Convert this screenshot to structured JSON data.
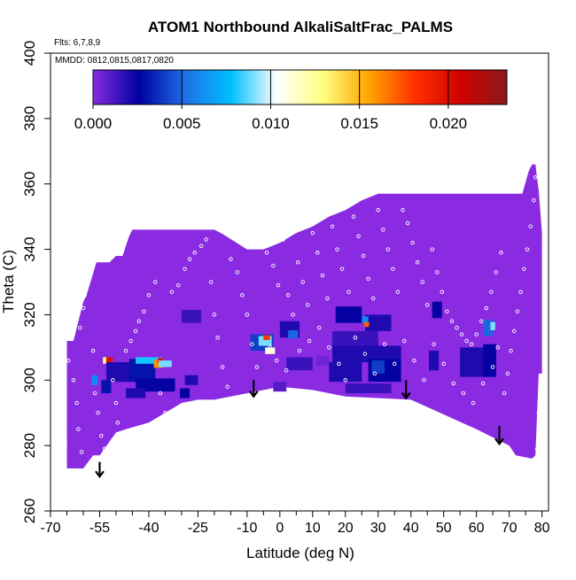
{
  "chart_data": {
    "type": "heatmap",
    "title": "ATOM1 Northbound AlkaliSaltFrac_PALMS",
    "flights_note": "Flts: 6,7,8,9",
    "dates_note": "MMDD: 0812,0815,0817,0820",
    "xlabel": "Latitude (deg N)",
    "ylabel": "Theta (C)",
    "xlim": [
      -70,
      82
    ],
    "ylim": [
      260,
      400
    ],
    "xticks_major": [
      -70,
      -55,
      -40,
      -25,
      -10,
      0,
      10,
      20,
      30,
      40,
      50,
      60,
      70,
      80
    ],
    "xticks_minor": [
      -65,
      -60,
      -50,
      -45,
      -35,
      -30,
      -20,
      -15,
      -5,
      5,
      15,
      25,
      35,
      45,
      55,
      65,
      75
    ],
    "yticks": [
      260,
      280,
      300,
      320,
      340,
      360,
      380,
      400
    ],
    "colorbar": {
      "min": 0.0,
      "max": 0.0233,
      "tick_values": [
        0.0,
        0.005,
        0.01,
        0.015,
        0.02
      ],
      "tick_labels": [
        "0.000",
        "0.005",
        "0.010",
        "0.015",
        "0.020"
      ],
      "colors": [
        "#8a2be2",
        "#0000a0",
        "#1e6fe6",
        "#00bfff",
        "#ffffff",
        "#ffff80",
        "#ffa500",
        "#ff3000",
        "#d00000",
        "#8b1a1a"
      ]
    },
    "background_color": "#8a2be2",
    "domain_outline": {
      "lat": [
        -65,
        -63,
        -60,
        -59,
        -56,
        -52,
        -50,
        -48,
        -46,
        -45,
        -42,
        -40,
        -38,
        -30,
        -28,
        -24,
        -22,
        -20,
        -18,
        -10,
        -5,
        0,
        5,
        10,
        15,
        20,
        25,
        30,
        40,
        50,
        60,
        62,
        65,
        67,
        68,
        70,
        74,
        76,
        77,
        78,
        79,
        80,
        80,
        79,
        78,
        77,
        72,
        70,
        60,
        40,
        20,
        10,
        0,
        -10,
        -20,
        -25,
        -30,
        -40,
        -47,
        -50,
        -55,
        -57,
        -60,
        -62,
        -65,
        -65
      ],
      "theta": [
        312,
        312,
        324,
        326,
        336,
        336,
        338,
        338,
        344,
        346,
        346,
        346,
        346,
        346,
        346,
        346,
        346,
        346,
        345,
        340,
        340,
        342,
        345,
        347,
        350,
        352,
        355,
        357,
        357,
        357,
        357,
        357,
        357,
        357,
        357,
        357,
        357,
        364,
        366,
        366,
        358,
        345,
        302,
        302,
        277,
        276,
        277,
        280,
        285,
        294,
        295,
        297,
        298,
        296,
        294,
        294,
        293,
        287,
        285,
        284,
        277,
        277,
        273,
        273,
        273,
        312
      ]
    },
    "cells": [
      {
        "lat": -54.0,
        "theta": 305.0,
        "w": 1.5,
        "h": 2.0,
        "v": 0.0
      },
      {
        "lat": -53.0,
        "theta": 306.0,
        "w": 2.0,
        "h": 2.0,
        "v": 0.013
      },
      {
        "lat": -52.0,
        "theta": 306.0,
        "w": 2.0,
        "h": 2.0,
        "v": 0.02
      },
      {
        "lat": -56.5,
        "theta": 300.0,
        "w": 2.0,
        "h": 3.0,
        "v": 0.006
      },
      {
        "lat": -53.0,
        "theta": 298.0,
        "w": 3.0,
        "h": 4.0,
        "v": 0.003
      },
      {
        "lat": -48.0,
        "theta": 302.5,
        "w": 10.0,
        "h": 6.0,
        "v": 0.002
      },
      {
        "lat": -42.0,
        "theta": 303.0,
        "w": 8.0,
        "h": 7.0,
        "v": 0.003
      },
      {
        "lat": -40.0,
        "theta": 306.0,
        "w": 8.0,
        "h": 2.0,
        "v": 0.008
      },
      {
        "lat": -37.0,
        "theta": 305.0,
        "w": 3.0,
        "h": 2.5,
        "v": 0.016
      },
      {
        "lat": -36.5,
        "theta": 306.0,
        "w": 1.5,
        "h": 1.5,
        "v": 0.02
      },
      {
        "lat": -35.0,
        "theta": 305.0,
        "w": 4.0,
        "h": 2.0,
        "v": 0.009
      },
      {
        "lat": -38.0,
        "theta": 298.5,
        "w": 12.0,
        "h": 4.0,
        "v": 0.0025
      },
      {
        "lat": -44.0,
        "theta": 296.0,
        "w": 6.0,
        "h": 3.0,
        "v": 0.002
      },
      {
        "lat": -27.0,
        "theta": 300.0,
        "w": 4.0,
        "h": 3.0,
        "v": 0.002
      },
      {
        "lat": -29.0,
        "theta": 296.0,
        "w": 3.0,
        "h": 3.0,
        "v": 0.0025
      },
      {
        "lat": -27.0,
        "theta": 319.5,
        "w": 6.0,
        "h": 4.0,
        "v": 0.0015
      },
      {
        "lat": -5.5,
        "theta": 311.5,
        "w": 7.0,
        "h": 5.0,
        "v": 0.004
      },
      {
        "lat": -4.5,
        "theta": 312.0,
        "w": 4.0,
        "h": 3.0,
        "v": 0.009
      },
      {
        "lat": -4.0,
        "theta": 313.0,
        "w": 2.0,
        "h": 1.5,
        "v": 0.018
      },
      {
        "lat": -3.0,
        "theta": 309.0,
        "w": 3.0,
        "h": 2.0,
        "v": 0.011
      },
      {
        "lat": 3.0,
        "theta": 315.5,
        "w": 6.0,
        "h": 5.0,
        "v": 0.002
      },
      {
        "lat": 4.0,
        "theta": 314.0,
        "w": 3.0,
        "h": 2.5,
        "v": 0.005
      },
      {
        "lat": 0.0,
        "theta": 298.0,
        "w": 4.0,
        "h": 3.0,
        "v": 0.001
      },
      {
        "lat": 6.0,
        "theta": 305.0,
        "w": 8.0,
        "h": 4.0,
        "v": 0.0015
      },
      {
        "lat": 21.0,
        "theta": 320.0,
        "w": 8.0,
        "h": 5.0,
        "v": 0.0025
      },
      {
        "lat": 30.0,
        "theta": 317.5,
        "w": 8.0,
        "h": 5.0,
        "v": 0.002
      },
      {
        "lat": 23.0,
        "theta": 312.5,
        "w": 14.0,
        "h": 5.0,
        "v": 0.0015
      },
      {
        "lat": 26.5,
        "theta": 308.0,
        "w": 21.0,
        "h": 5.0,
        "v": 0.002
      },
      {
        "lat": 20.0,
        "theta": 302.5,
        "w": 10.0,
        "h": 6.0,
        "v": 0.002
      },
      {
        "lat": 32.0,
        "theta": 303.0,
        "w": 10.0,
        "h": 7.0,
        "v": 0.0025
      },
      {
        "lat": 30.0,
        "theta": 304.0,
        "w": 4.0,
        "h": 4.0,
        "v": 0.004
      },
      {
        "lat": 27.0,
        "theta": 297.5,
        "w": 14.0,
        "h": 3.0,
        "v": 0.0015
      },
      {
        "lat": 26.0,
        "theta": 318.5,
        "w": 2.0,
        "h": 2.0,
        "v": 0.006
      },
      {
        "lat": 26.5,
        "theta": 317.0,
        "w": 1.5,
        "h": 1.5,
        "v": 0.017
      },
      {
        "lat": 13.0,
        "theta": 306.0,
        "w": 4.0,
        "h": 3.0,
        "v": 0.0005
      },
      {
        "lat": 47.0,
        "theta": 306.0,
        "w": 3.0,
        "h": 6.0,
        "v": 0.002
      },
      {
        "lat": 48.0,
        "theta": 321.5,
        "w": 3.0,
        "h": 5.0,
        "v": 0.0025
      },
      {
        "lat": 60.0,
        "theta": 305.5,
        "w": 10.0,
        "h": 9.0,
        "v": 0.002
      },
      {
        "lat": 64.0,
        "theta": 306.0,
        "w": 4.0,
        "h": 10.0,
        "v": 0.0025
      },
      {
        "lat": 63.5,
        "theta": 316.0,
        "w": 3.0,
        "h": 5.0,
        "v": 0.005
      },
      {
        "lat": 65.0,
        "theta": 316.5,
        "w": 1.5,
        "h": 2.5,
        "v": 0.009
      }
    ],
    "arrows": [
      {
        "lat": -55.0,
        "theta_top": 275.0,
        "theta_tip": 270.5
      },
      {
        "lat": -8.0,
        "theta_top": 300.0,
        "theta_tip": 295.0
      },
      {
        "lat": 38.5,
        "theta_top": 300.0,
        "theta_tip": 294.5
      },
      {
        "lat": 67.0,
        "theta_top": 286.0,
        "theta_tip": 280.5
      }
    ],
    "flight_track_points": [
      {
        "lat": -68.5,
        "theta": 310
      },
      {
        "lat": -68.0,
        "theta": 302
      },
      {
        "lat": -67.0,
        "theta": 296
      },
      {
        "lat": -66.5,
        "theta": 288
      },
      {
        "lat": -65.5,
        "theta": 281
      },
      {
        "lat": -64.5,
        "theta": 306
      },
      {
        "lat": -63.0,
        "theta": 300
      },
      {
        "lat": -62.0,
        "theta": 293
      },
      {
        "lat": -61.5,
        "theta": 285
      },
      {
        "lat": -60.5,
        "theta": 278
      },
      {
        "lat": -61.0,
        "theta": 316
      },
      {
        "lat": -60.0,
        "theta": 322
      },
      {
        "lat": -59.5,
        "theta": 326
      },
      {
        "lat": -58.5,
        "theta": 331
      },
      {
        "lat": -57.5,
        "theta": 336
      },
      {
        "lat": -57.0,
        "theta": 309
      },
      {
        "lat": -56.5,
        "theta": 296
      },
      {
        "lat": -55.5,
        "theta": 290
      },
      {
        "lat": -54.5,
        "theta": 283
      },
      {
        "lat": -53.5,
        "theta": 279
      },
      {
        "lat": -52.5,
        "theta": 274
      },
      {
        "lat": -51.0,
        "theta": 300
      },
      {
        "lat": -50.0,
        "theta": 293
      },
      {
        "lat": -49.5,
        "theta": 287
      },
      {
        "lat": -48.0,
        "theta": 284
      },
      {
        "lat": -47.0,
        "theta": 309
      },
      {
        "lat": -45.5,
        "theta": 312
      },
      {
        "lat": -44.0,
        "theta": 315
      },
      {
        "lat": -43.0,
        "theta": 318
      },
      {
        "lat": -41.5,
        "theta": 321
      },
      {
        "lat": -40.0,
        "theta": 326
      },
      {
        "lat": -38.0,
        "theta": 330
      },
      {
        "lat": -36.5,
        "theta": 296
      },
      {
        "lat": -35.0,
        "theta": 290
      },
      {
        "lat": -33.0,
        "theta": 327
      },
      {
        "lat": -31.0,
        "theta": 329
      },
      {
        "lat": -29.0,
        "theta": 334
      },
      {
        "lat": -27.5,
        "theta": 337
      },
      {
        "lat": -26.0,
        "theta": 339
      },
      {
        "lat": -24.0,
        "theta": 341
      },
      {
        "lat": -22.5,
        "theta": 343
      },
      {
        "lat": -21.0,
        "theta": 330
      },
      {
        "lat": -20.0,
        "theta": 320
      },
      {
        "lat": -19.0,
        "theta": 313
      },
      {
        "lat": -17.5,
        "theta": 304
      },
      {
        "lat": -16.0,
        "theta": 298
      },
      {
        "lat": -15.0,
        "theta": 337
      },
      {
        "lat": -13.0,
        "theta": 333
      },
      {
        "lat": -11.5,
        "theta": 326
      },
      {
        "lat": -10.0,
        "theta": 320
      },
      {
        "lat": -8.5,
        "theta": 311
      },
      {
        "lat": -7.0,
        "theta": 304
      },
      {
        "lat": -6.0,
        "theta": 342
      },
      {
        "lat": -4.0,
        "theta": 339
      },
      {
        "lat": -2.0,
        "theta": 335
      },
      {
        "lat": -0.5,
        "theta": 329
      },
      {
        "lat": 1.0,
        "theta": 343
      },
      {
        "lat": 2.5,
        "theta": 326
      },
      {
        "lat": 4.0,
        "theta": 320
      },
      {
        "lat": 5.5,
        "theta": 336
      },
      {
        "lat": 7.0,
        "theta": 330
      },
      {
        "lat": 8.5,
        "theta": 323
      },
      {
        "lat": 10.0,
        "theta": 345
      },
      {
        "lat": 11.5,
        "theta": 339
      },
      {
        "lat": 13.0,
        "theta": 332
      },
      {
        "lat": 14.5,
        "theta": 325
      },
      {
        "lat": 16.0,
        "theta": 347
      },
      {
        "lat": 17.5,
        "theta": 340
      },
      {
        "lat": 19.0,
        "theta": 334
      },
      {
        "lat": 21.0,
        "theta": 327
      },
      {
        "lat": 22.5,
        "theta": 350
      },
      {
        "lat": 24.0,
        "theta": 344
      },
      {
        "lat": 25.5,
        "theta": 338
      },
      {
        "lat": 27.0,
        "theta": 331
      },
      {
        "lat": 28.5,
        "theta": 325
      },
      {
        "lat": 30.0,
        "theta": 352
      },
      {
        "lat": 31.5,
        "theta": 346
      },
      {
        "lat": 33.0,
        "theta": 340
      },
      {
        "lat": 34.5,
        "theta": 334
      },
      {
        "lat": 36.0,
        "theta": 327
      },
      {
        "lat": 37.5,
        "theta": 352
      },
      {
        "lat": 39.0,
        "theta": 348
      },
      {
        "lat": 40.5,
        "theta": 342
      },
      {
        "lat": 42.0,
        "theta": 336
      },
      {
        "lat": 43.5,
        "theta": 330
      },
      {
        "lat": 45.0,
        "theta": 323
      },
      {
        "lat": 46.5,
        "theta": 340
      },
      {
        "lat": 48.0,
        "theta": 333
      },
      {
        "lat": 49.5,
        "theta": 327
      },
      {
        "lat": 51.0,
        "theta": 321
      },
      {
        "lat": 52.5,
        "theta": 318
      },
      {
        "lat": 54.0,
        "theta": 316
      },
      {
        "lat": 55.5,
        "theta": 314
      },
      {
        "lat": 57.0,
        "theta": 312
      },
      {
        "lat": 58.5,
        "theta": 311
      },
      {
        "lat": 60.0,
        "theta": 314
      },
      {
        "lat": 61.5,
        "theta": 318
      },
      {
        "lat": 63.0,
        "theta": 322
      },
      {
        "lat": 64.5,
        "theta": 327
      },
      {
        "lat": 66.0,
        "theta": 333
      },
      {
        "lat": 67.5,
        "theta": 339
      },
      {
        "lat": 68.5,
        "theta": 296
      },
      {
        "lat": 69.5,
        "theta": 302
      },
      {
        "lat": 70.5,
        "theta": 309
      },
      {
        "lat": 71.5,
        "theta": 315
      },
      {
        "lat": 72.5,
        "theta": 321
      },
      {
        "lat": 73.5,
        "theta": 327
      },
      {
        "lat": 74.5,
        "theta": 334
      },
      {
        "lat": 75.5,
        "theta": 340
      },
      {
        "lat": 76.5,
        "theta": 347
      },
      {
        "lat": 77.5,
        "theta": 355
      },
      {
        "lat": 78.0,
        "theta": 362
      },
      {
        "lat": 79.0,
        "theta": 290
      },
      {
        "lat": 79.5,
        "theta": 284
      },
      {
        "lat": 78.5,
        "theta": 279
      },
      {
        "lat": -3.0,
        "theta": 310
      },
      {
        "lat": -1.0,
        "theta": 306
      },
      {
        "lat": 2.0,
        "theta": 303
      },
      {
        "lat": 6.0,
        "theta": 309
      },
      {
        "lat": 9.0,
        "theta": 312
      },
      {
        "lat": 12.0,
        "theta": 316
      },
      {
        "lat": 15.0,
        "theta": 310
      },
      {
        "lat": 18.0,
        "theta": 305
      },
      {
        "lat": 20.0,
        "theta": 300
      },
      {
        "lat": 23.0,
        "theta": 313
      },
      {
        "lat": 26.0,
        "theta": 308
      },
      {
        "lat": 29.0,
        "theta": 302
      },
      {
        "lat": 32.0,
        "theta": 311
      },
      {
        "lat": 35.0,
        "theta": 305
      },
      {
        "lat": 38.0,
        "theta": 312
      },
      {
        "lat": 41.0,
        "theta": 306
      },
      {
        "lat": 44.0,
        "theta": 300
      },
      {
        "lat": 47.0,
        "theta": 311
      },
      {
        "lat": 50.0,
        "theta": 305
      },
      {
        "lat": 53.0,
        "theta": 299
      },
      {
        "lat": 56.0,
        "theta": 296
      },
      {
        "lat": 59.0,
        "theta": 293
      },
      {
        "lat": 62.0,
        "theta": 299
      },
      {
        "lat": 65.0,
        "theta": 304
      },
      {
        "lat": 66.5,
        "theta": 310
      }
    ]
  }
}
